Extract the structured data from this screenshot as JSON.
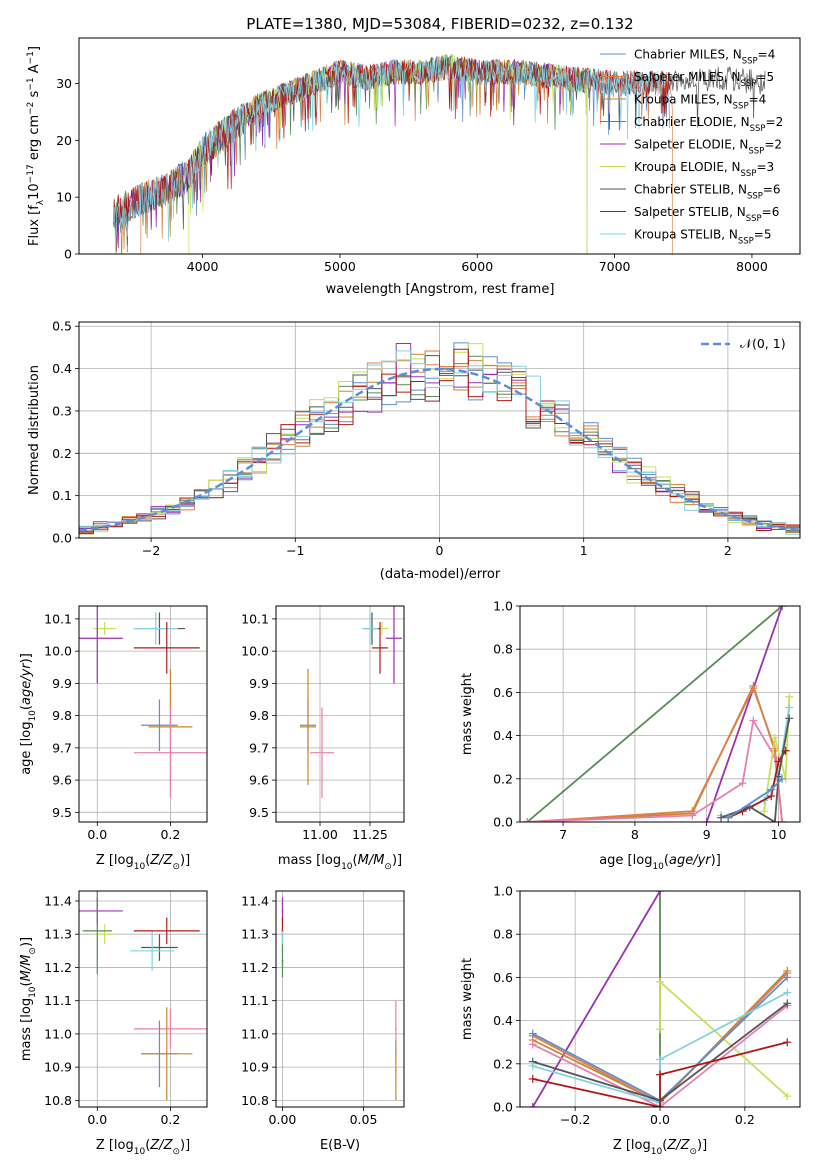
{
  "figure_title": "PLATE=1380, MJD=53084, FIBERID=0232, z=0.132",
  "colors": {
    "Chabrier MILES": "#5b8fcf",
    "Salpeter MILES": "#e07f4a",
    "Kroupa MILES": "#c7862d",
    "Chabrier ELODIE": "#5a8a5a",
    "Salpeter ELODIE": "#9b30b0",
    "Kroupa ELODIE": "#c8e05a",
    "Chabrier STELIB": "#555555",
    "Salpeter STELIB": "#b01818",
    "Kroupa STELIB": "#82d2e0",
    "pink": "#e87fb0",
    "gaussian": "#5b8fd8",
    "grid": "#b0b0b0"
  },
  "chart_data": [
    {
      "id": "spectrum",
      "type": "line",
      "xlabel": "wavelength [Angstrom, rest frame]",
      "ylabel": "Flux [f_λ10^-17 erg cm^-2 s^-1 A^-1]",
      "xlim": [
        3100,
        8350
      ],
      "ylim": [
        0,
        38
      ],
      "xticks": [
        4000,
        5000,
        6000,
        7000,
        8000
      ],
      "yticks": [
        0,
        10,
        20,
        30
      ],
      "grid": false,
      "legend_position": "top-right",
      "continuum": {
        "x": [
          3350,
          3500,
          3700,
          3900,
          4000,
          4200,
          4400,
          4600,
          4800,
          5000,
          5200,
          5400,
          5600,
          5800,
          6000,
          6300,
          6600,
          7000,
          7400,
          7800,
          8100
        ],
        "y": [
          7,
          9,
          11,
          14,
          18,
          22,
          26,
          28,
          30,
          32,
          31,
          32,
          32,
          33,
          32,
          32,
          31,
          30,
          30,
          31,
          30
        ]
      },
      "series": [
        {
          "name": "Chabrier MILES, N_SSP=4",
          "sub_before": "Chabrier MILES, N",
          "sub": "SSP",
          "sub_after": "=4",
          "color": "#5b8fcf",
          "x_start": 3350,
          "x_end": 7400,
          "drop_end": false
        },
        {
          "name": "Salpeter MILES, N_SSP=5",
          "sub_before": "Salpeter MILES, N",
          "sub": "SSP",
          "sub_after": "=5",
          "color": "#e07f4a",
          "x_start": 3550,
          "x_end": 7420,
          "drop_end": true
        },
        {
          "name": "Kroupa MILES, N_SSP=4",
          "sub_before": "Kroupa MILES, N",
          "sub": "SSP",
          "sub_after": "=4",
          "color": "#c7862d",
          "x_start": 3350,
          "x_end": 6800,
          "drop_end": true
        },
        {
          "name": "Chabrier ELODIE, N_SSP=2",
          "sub_before": "Chabrier ELODIE, N",
          "sub": "SSP",
          "sub_after": "=2",
          "color": "#5a8a5a",
          "x_start": 3350,
          "x_end": 6800,
          "drop_end": false
        },
        {
          "name": "Salpeter ELODIE, N_SSP=2",
          "sub_before": "Salpeter ELODIE, N",
          "sub": "SSP",
          "sub_after": "=2",
          "color": "#9b30b0",
          "x_start": 3350,
          "x_end": 6800,
          "drop_end": false
        },
        {
          "name": "Kroupa ELODIE, N_SSP=3",
          "sub_before": "Kroupa ELODIE, N",
          "sub": "SSP",
          "sub_after": "=3",
          "color": "#c8e05a",
          "x_start": 3900,
          "x_end": 6800,
          "drop_end": true
        },
        {
          "name": "Chabrier STELIB, N_SSP=6",
          "sub_before": "Chabrier STELIB, N",
          "sub": "SSP",
          "sub_after": "=6",
          "color": "#555555",
          "x_start": 3350,
          "x_end": 8100,
          "drop_end": false
        },
        {
          "name": "Salpeter STELIB, N_SSP=6",
          "sub_before": "Salpeter STELIB, N",
          "sub": "SSP",
          "sub_after": "=6",
          "color": "#b01818",
          "x_start": 3350,
          "x_end": 7400,
          "drop_end": false
        },
        {
          "name": "Kroupa STELIB, N_SSP=5",
          "sub_before": "Kroupa STELIB, N",
          "sub": "SSP",
          "sub_after": "=5",
          "color": "#82d2e0",
          "x_start": 3350,
          "x_end": 7400,
          "drop_end": false
        }
      ]
    },
    {
      "id": "residuals",
      "type": "bar",
      "xlabel": "(data-model)/error",
      "ylabel": "Normed distribution",
      "xlim": [
        -2.5,
        2.5
      ],
      "ylim": [
        0,
        0.51
      ],
      "xticks": [
        -2,
        -1,
        0,
        1,
        2
      ],
      "yticks": [
        0.0,
        0.1,
        0.2,
        0.3,
        0.4,
        0.5
      ],
      "grid": true,
      "legend_position": "top-right",
      "gaussian_label": "𝒩(0, 1)",
      "bin_width": 0.1,
      "series_colors": [
        "#5b8fcf",
        "#e07f4a",
        "#c7862d",
        "#5a8a5a",
        "#9b30b0",
        "#c8e05a",
        "#555555",
        "#b01818",
        "#82d2e0"
      ],
      "gaussian": {
        "mu": 0,
        "sigma": 1
      }
    },
    {
      "id": "age-vs-Z",
      "type": "scatter",
      "xlabel": "Z [log10(Z/Z⊙)]",
      "ylabel": "age [log10(age/yr)]",
      "xlim": [
        -0.05,
        0.3
      ],
      "ylim": [
        9.47,
        10.14
      ],
      "xticks": [
        0.0,
        0.2
      ],
      "yticks": [
        9.5,
        9.6,
        9.7,
        9.8,
        9.9,
        10.0,
        10.1
      ],
      "grid": true,
      "points": [
        {
          "x": 0.02,
          "y": 10.07,
          "xerr": 0.03,
          "yerr": 0.02,
          "color": "#c8e05a"
        },
        {
          "x": 0.0,
          "y": 10.04,
          "xerr": 0.07,
          "yerr": 0.14,
          "color": "#9b30b0"
        },
        {
          "x": 0.17,
          "y": 10.07,
          "xerr": 0.07,
          "yerr": 0.05,
          "color": "#555555"
        },
        {
          "x": 0.16,
          "y": 10.07,
          "xerr": 0.06,
          "yerr": 0.05,
          "color": "#82d2e0"
        },
        {
          "x": 0.19,
          "y": 10.01,
          "xerr": 0.09,
          "yerr": 0.08,
          "color": "#b01818"
        },
        {
          "x": 0.17,
          "y": 9.77,
          "xerr": 0.05,
          "yerr": 0.08,
          "color": "#5b8fcf"
        },
        {
          "x": 0.2,
          "y": 9.765,
          "xerr": 0.06,
          "yerr": 0.18,
          "color": "#c7862d"
        },
        {
          "x": 0.2,
          "y": 9.685,
          "xerr": 0.1,
          "yerr": 0.14,
          "color": "#e87fb0"
        }
      ]
    },
    {
      "id": "age-vs-mass",
      "type": "scatter",
      "xlabel": "mass [log10(M/M⊙)]",
      "ylabel": "",
      "xlim": [
        10.78,
        11.42
      ],
      "ylim": [
        9.47,
        10.14
      ],
      "xticks": [
        11.0,
        11.25
      ],
      "yticks": [
        9.5,
        9.6,
        9.7,
        9.8,
        9.9,
        10.0,
        10.1
      ],
      "grid": true,
      "points": [
        {
          "x": 11.31,
          "y": 10.07,
          "xerr": 0.03,
          "yerr": 0.02,
          "color": "#c8e05a"
        },
        {
          "x": 11.37,
          "y": 10.04,
          "xerr": 0.04,
          "yerr": 0.14,
          "color": "#9b30b0"
        },
        {
          "x": 11.26,
          "y": 10.07,
          "xerr": 0.04,
          "yerr": 0.05,
          "color": "#555555"
        },
        {
          "x": 11.25,
          "y": 10.07,
          "xerr": 0.04,
          "yerr": 0.05,
          "color": "#82d2e0"
        },
        {
          "x": 11.3,
          "y": 10.01,
          "xerr": 0.04,
          "yerr": 0.08,
          "color": "#b01818"
        },
        {
          "x": 10.94,
          "y": 9.77,
          "xerr": 0.04,
          "yerr": 0.08,
          "color": "#5b8fcf"
        },
        {
          "x": 10.94,
          "y": 9.765,
          "xerr": 0.04,
          "yerr": 0.18,
          "color": "#c7862d"
        },
        {
          "x": 11.01,
          "y": 9.685,
          "xerr": 0.06,
          "yerr": 0.14,
          "color": "#e87fb0"
        }
      ]
    },
    {
      "id": "mass-weight-vs-age",
      "type": "line",
      "xlabel": "age [log10(age/yr)]",
      "ylabel": "mass weight",
      "xlim": [
        6.4,
        10.3
      ],
      "ylim": [
        0,
        1
      ],
      "xticks": [
        7,
        8,
        9,
        10
      ],
      "yticks": [
        0.0,
        0.2,
        0.4,
        0.6,
        0.8,
        1.0
      ],
      "grid": true,
      "series": [
        {
          "color": "#5a8a5a",
          "x": [
            6.5,
            10.05
          ],
          "y": [
            0.0,
            1.0
          ]
        },
        {
          "color": "#9b30b0",
          "x": [
            9.0,
            10.05
          ],
          "y": [
            0.0,
            1.0
          ]
        },
        {
          "color": "#c7862d",
          "x": [
            6.5,
            8.8,
            9.65,
            9.95,
            10.05
          ],
          "y": [
            0.0,
            0.04,
            0.63,
            0.33,
            0.0
          ]
        },
        {
          "color": "#e07f4a",
          "x": [
            6.5,
            8.8,
            9.65,
            9.95,
            10.05
          ],
          "y": [
            0.0,
            0.05,
            0.62,
            0.34,
            0.0
          ]
        },
        {
          "color": "#e87fb0",
          "x": [
            6.5,
            8.8,
            9.5,
            9.65,
            9.95,
            10.05
          ],
          "y": [
            0.0,
            0.03,
            0.18,
            0.47,
            0.3,
            0.0
          ]
        },
        {
          "color": "#c8e05a",
          "x": [
            9.8,
            9.95,
            10.1,
            10.15
          ],
          "y": [
            0.05,
            0.39,
            0.2,
            0.58
          ]
        },
        {
          "color": "#82d2e0",
          "x": [
            9.2,
            9.3,
            9.8,
            10.0,
            10.15
          ],
          "y": [
            0.03,
            0.02,
            0.1,
            0.22,
            0.53
          ]
        },
        {
          "color": "#b01818",
          "x": [
            9.3,
            9.5,
            9.9,
            10.0,
            10.1
          ],
          "y": [
            0.02,
            0.05,
            0.12,
            0.28,
            0.33
          ]
        },
        {
          "color": "#555555",
          "x": [
            9.2,
            9.6,
            9.95,
            10.0,
            10.15
          ],
          "y": [
            0.02,
            0.07,
            0.0,
            0.21,
            0.48
          ]
        },
        {
          "color": "#5b8fcf",
          "x": [
            9.3,
            9.9,
            10.05
          ],
          "y": [
            0.02,
            0.15,
            0.2
          ]
        }
      ]
    },
    {
      "id": "mass-vs-Z",
      "type": "scatter",
      "xlabel": "Z [log10(Z/Z⊙)]",
      "ylabel": "mass [log10(M/M⊙)]",
      "xlim": [
        -0.05,
        0.3
      ],
      "ylim": [
        10.78,
        11.43
      ],
      "xticks": [
        0.0,
        0.2
      ],
      "yticks": [
        10.8,
        10.9,
        11.0,
        11.1,
        11.2,
        11.3,
        11.4
      ],
      "grid": true,
      "points": [
        {
          "x": 0.02,
          "y": 11.3,
          "xerr": 0.03,
          "yerr": 0.03,
          "color": "#c8e05a"
        },
        {
          "x": 0.0,
          "y": 11.37,
          "xerr": 0.07,
          "yerr": 0.04,
          "color": "#9b30b0"
        },
        {
          "x": 0.0,
          "y": 11.31,
          "xerr": 0.04,
          "yerr": 0.13,
          "color": "#5a8a5a"
        },
        {
          "x": 0.17,
          "y": 11.26,
          "xerr": 0.05,
          "yerr": 0.04,
          "color": "#555555"
        },
        {
          "x": 0.15,
          "y": 11.25,
          "xerr": 0.06,
          "yerr": 0.06,
          "color": "#82d2e0"
        },
        {
          "x": 0.19,
          "y": 11.31,
          "xerr": 0.09,
          "yerr": 0.04,
          "color": "#b01818"
        },
        {
          "x": 0.2,
          "y": 11.015,
          "xerr": 0.1,
          "yerr": 0.06,
          "color": "#e87fb0"
        },
        {
          "x": 0.17,
          "y": 10.94,
          "xerr": 0.05,
          "yerr": 0.1,
          "color": "#5b8fcf"
        },
        {
          "x": 0.19,
          "y": 10.94,
          "xerr": 0.07,
          "yerr": 0.14,
          "color": "#c7862d"
        }
      ]
    },
    {
      "id": "mass-vs-ebv",
      "type": "scatter",
      "xlabel": "E(B-V)",
      "ylabel": "",
      "xlim": [
        -0.004,
        0.075
      ],
      "ylim": [
        10.78,
        11.43
      ],
      "xticks": [
        0.0,
        0.05
      ],
      "yticks": [
        10.8,
        10.9,
        11.0,
        11.1,
        11.2,
        11.3,
        11.4
      ],
      "grid": true,
      "points": [
        {
          "x": 0.0,
          "y": 11.37,
          "xerr": 0.0005,
          "yerr": 0.04,
          "color": "#9b30b0"
        },
        {
          "x": 0.0,
          "y": 11.31,
          "xerr": 0.0005,
          "yerr": 0.04,
          "color": "#b01818"
        },
        {
          "x": 0.0,
          "y": 11.25,
          "xerr": 0.0005,
          "yerr": 0.06,
          "color": "#82d2e0"
        },
        {
          "x": 0.0,
          "y": 11.22,
          "xerr": 0.0005,
          "yerr": 0.05,
          "color": "#5a8a5a"
        },
        {
          "x": 0.07,
          "y": 11.015,
          "xerr": 0.0005,
          "yerr": 0.085,
          "color": "#e87fb0"
        },
        {
          "x": 0.07,
          "y": 10.89,
          "xerr": 0.0005,
          "yerr": 0.09,
          "color": "#c7862d"
        }
      ]
    },
    {
      "id": "mass-weight-vs-Z",
      "type": "line",
      "xlabel": "Z [log10(Z/Z⊙)]",
      "ylabel": "mass weight",
      "xlim": [
        -0.33,
        0.33
      ],
      "ylim": [
        0,
        1
      ],
      "xticks": [
        -0.2,
        0.0,
        0.2
      ],
      "yticks": [
        0.0,
        0.2,
        0.4,
        0.6,
        0.8,
        1.0
      ],
      "grid": true,
      "series": [
        {
          "color": "#5a8a5a",
          "x": [
            0.0,
            0.0
          ],
          "y": [
            0.0,
            1.0
          ]
        },
        {
          "color": "#9b30b0",
          "x": [
            -0.3,
            0.0
          ],
          "y": [
            0.0,
            1.0
          ]
        },
        {
          "color": "#c8e05a",
          "x": [
            0.0,
            0.0,
            0.3
          ],
          "y": [
            0.36,
            0.58,
            0.05
          ]
        },
        {
          "color": "#c7862d",
          "x": [
            -0.3,
            0.0,
            0.3
          ],
          "y": [
            0.31,
            0.02,
            0.63
          ]
        },
        {
          "color": "#e07f4a",
          "x": [
            -0.3,
            0.0,
            0.3
          ],
          "y": [
            0.33,
            0.02,
            0.62
          ]
        },
        {
          "color": "#5b8fcf",
          "x": [
            -0.3,
            0.0,
            0.3
          ],
          "y": [
            0.34,
            0.03,
            0.6
          ]
        },
        {
          "color": "#e87fb0",
          "x": [
            -0.3,
            0.0,
            0.3
          ],
          "y": [
            0.29,
            0.0,
            0.47
          ]
        },
        {
          "color": "#555555",
          "x": [
            -0.3,
            0.0,
            0.3
          ],
          "y": [
            0.21,
            0.03,
            0.48
          ]
        },
        {
          "color": "#82d2e0",
          "x": [
            -0.3,
            0.0,
            0.0,
            0.3
          ],
          "y": [
            0.19,
            0.02,
            0.22,
            0.53
          ]
        },
        {
          "color": "#b01818",
          "x": [
            -0.3,
            0.0,
            0.0,
            0.3
          ],
          "y": [
            0.13,
            0.0,
            0.15,
            0.3
          ]
        }
      ]
    }
  ]
}
